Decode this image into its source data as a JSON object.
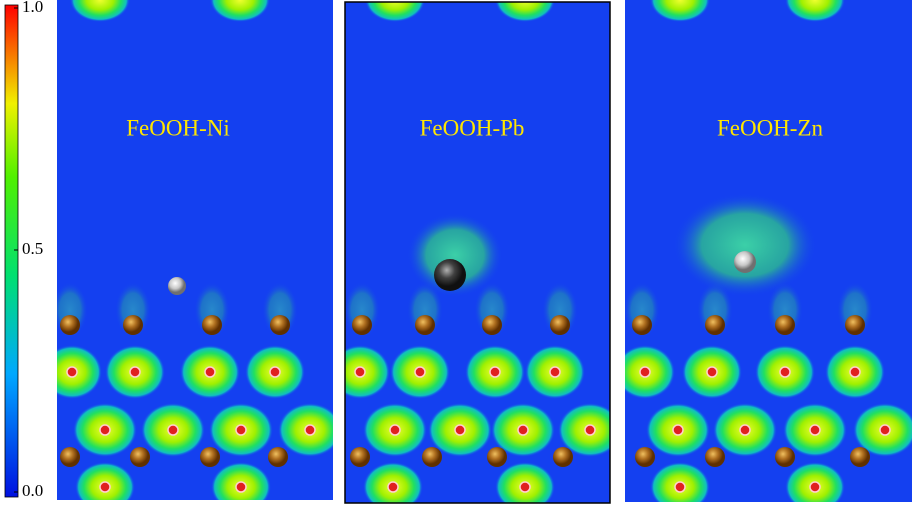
{
  "colorbar": {
    "lim": [
      0,
      1
    ],
    "ticks": [
      {
        "value": 0,
        "label": "0.0"
      },
      {
        "value": 0.5,
        "label": "0.5"
      },
      {
        "value": 1,
        "label": "1.0"
      }
    ]
  },
  "panels": [
    {
      "label": "FeOOH-Ni"
    },
    {
      "label": "FeOOH-Pb"
    },
    {
      "label": "FeOOH-Zn"
    }
  ]
}
